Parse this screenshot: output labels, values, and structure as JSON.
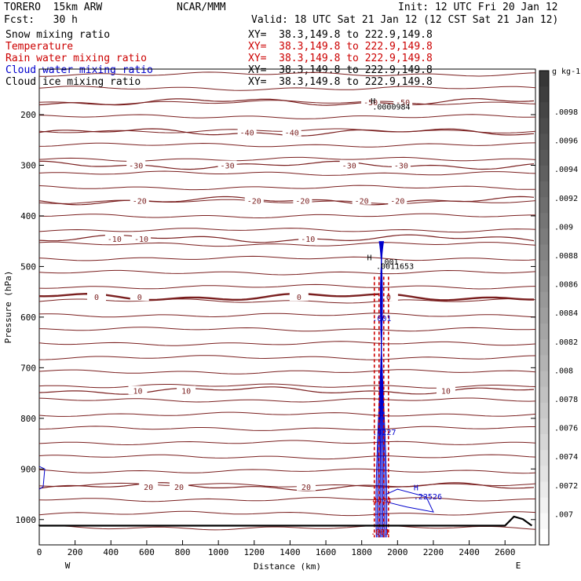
{
  "header": {
    "model": "TORERO  15km ARW",
    "org": "NCAR/MMM",
    "init": "Init: 12 UTC Fri 20 Jan 12",
    "fcst": "Fcst:   30 h",
    "valid": "Valid: 18 UTC Sat 21 Jan 12 (12 CST Sat 21 Jan 12)"
  },
  "legend": [
    {
      "name": "Snow mixing ratio",
      "xy": "XY=  38.3,149.8 to 222.9,149.8",
      "color": "#000000",
      "xy_color": "#000000"
    },
    {
      "name": "Temperature",
      "xy": "XY=  38.3,149.8 to 222.9,149.8",
      "color": "#cc0000",
      "xy_color": "#cc0000"
    },
    {
      "name": "Rain water mixing ratio",
      "xy": "XY=  38.3,149.8 to 222.9,149.8",
      "color": "#cc0000",
      "xy_color": "#cc0000"
    },
    {
      "name": "Cloud water mixing ratio",
      "xy": "XY=  38.3,149.8 to 222.9,149.8",
      "color": "#0000cc",
      "xy_color": "#000000"
    },
    {
      "name": "Cloud ice mixing ratio",
      "xy": "XY=  38.3,149.8 to 222.9,149.8",
      "color": "#000000",
      "xy_color": "#000000"
    }
  ],
  "chart_data": {
    "type": "contour-cross-section",
    "xlabel": "Distance (km)",
    "ylabel": "Pressure (hPa)",
    "xlim": [
      0,
      2770
    ],
    "ylim": [
      1050,
      110
    ],
    "x_ticks": [
      0,
      200,
      400,
      600,
      800,
      1000,
      1200,
      1400,
      1600,
      1800,
      2000,
      2200,
      2400,
      2600
    ],
    "y_ticks": [
      200,
      300,
      400,
      500,
      600,
      700,
      800,
      900,
      1000
    ],
    "left_end_label": "W",
    "right_end_label": "E",
    "temperature_contours": [
      {
        "level": -50,
        "p": 175,
        "labels": [
          {
            "x": 1850,
            "text": "-50"
          },
          {
            "x": 2030,
            "text": "-50"
          }
        ]
      },
      {
        "level": -40,
        "p": 235,
        "labels": [
          {
            "x": 1160,
            "text": "-40"
          },
          {
            "x": 1410,
            "text": "-40"
          }
        ]
      },
      {
        "level": -30,
        "p": 300,
        "labels": [
          {
            "x": 540,
            "text": "-30"
          },
          {
            "x": 1050,
            "text": "-30"
          },
          {
            "x": 1730,
            "text": "-30"
          },
          {
            "x": 2020,
            "text": "-30"
          }
        ]
      },
      {
        "level": -20,
        "p": 370,
        "labels": [
          {
            "x": 560,
            "text": "-20"
          },
          {
            "x": 1200,
            "text": "-20"
          },
          {
            "x": 1470,
            "text": "-20"
          },
          {
            "x": 1800,
            "text": "-20"
          },
          {
            "x": 2000,
            "text": "-20"
          }
        ]
      },
      {
        "level": -10,
        "p": 445,
        "labels": [
          {
            "x": 420,
            "text": "-10"
          },
          {
            "x": 570,
            "text": "-10"
          },
          {
            "x": 1500,
            "text": "-10"
          }
        ]
      },
      {
        "level": 0,
        "p": 560,
        "labels": [
          {
            "x": 320,
            "text": "0"
          },
          {
            "x": 560,
            "text": "0"
          },
          {
            "x": 1450,
            "text": "0"
          },
          {
            "x": 1950,
            "text": "0"
          }
        ]
      },
      {
        "level": 10,
        "p": 745,
        "labels": [
          {
            "x": 550,
            "text": "10"
          },
          {
            "x": 820,
            "text": "10"
          },
          {
            "x": 2270,
            "text": "10"
          }
        ]
      },
      {
        "level": 20,
        "p": 935,
        "labels": [
          {
            "x": 610,
            "text": "20"
          },
          {
            "x": 780,
            "text": "20"
          },
          {
            "x": 1490,
            "text": "20"
          }
        ]
      }
    ],
    "annotations": [
      {
        "x": 1850,
        "p": 178,
        "text": "H",
        "color": "#000000"
      },
      {
        "x": 1860,
        "p": 190,
        "text": ".0000984",
        "color": "#000000"
      },
      {
        "x": 1830,
        "p": 488,
        "text": "H",
        "color": "#000000"
      },
      {
        "x": 1900,
        "p": 496,
        "text": ".001",
        "color": "#000000"
      },
      {
        "x": 1880,
        "p": 505,
        "text": ".0011653",
        "color": "#000000"
      },
      {
        "x": 1860,
        "p": 608,
        "text": ".001",
        "color": "#0000cc"
      },
      {
        "x": 1860,
        "p": 833,
        "text": ".4227",
        "color": "#0000cc"
      },
      {
        "x": 1860,
        "p": 968,
        "text": "4424",
        "color": "#cc0000"
      },
      {
        "x": 2090,
        "p": 942,
        "text": "H",
        "color": "#0000cc"
      },
      {
        "x": 2090,
        "p": 960,
        "text": ".22526",
        "color": "#0000cc"
      },
      {
        "x": 1850,
        "p": 1030,
        "text": ".001",
        "color": "#cc0000"
      }
    ],
    "colorbar": {
      "units": "g kg-1",
      "ticks": [
        ".0098",
        ".0096",
        ".0094",
        ".0092",
        ".009",
        ".0088",
        ".0086",
        ".0084",
        ".0082",
        ".008",
        ".0078",
        ".0076",
        ".0074",
        ".0072",
        ".007"
      ]
    }
  }
}
